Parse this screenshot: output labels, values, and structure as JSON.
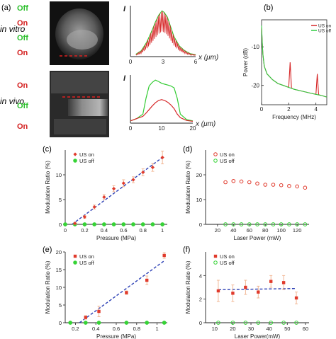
{
  "panel_labels": {
    "a": "(a)",
    "b": "(b)",
    "c": "(c)",
    "d": "(d)",
    "e": "(e)",
    "f": "(f)"
  },
  "panel_a": {
    "row_labels": {
      "in_vitro": "in vitro",
      "in_vivo": "in vivo"
    },
    "vitro_states": [
      "Off",
      "On",
      "Off",
      "On"
    ],
    "vivo_states": [
      "On",
      "Off",
      "On"
    ],
    "colors": {
      "off": "#2bbf2b",
      "on": "#d42020",
      "us_on_line": "#d62728",
      "us_off_line": "#33cc33"
    }
  },
  "chart_data": [
    {
      "id": "a-vitro-profile",
      "type": "line",
      "ylabel": "I",
      "xlabel": "x (μm)",
      "xlim": [
        0,
        6
      ],
      "xticks": [
        "0",
        "3",
        "6"
      ],
      "series": [
        {
          "values_note": "",
          "x": [
            0.5,
            1.0,
            1.5,
            2.0,
            2.3,
            2.6,
            2.9,
            3.1,
            3.4,
            3.7,
            4.0,
            4.5,
            5.0,
            5.5,
            6.0
          ],
          "y": [
            0.05,
            0.12,
            0.3,
            0.55,
            0.72,
            0.86,
            0.95,
            0.92,
            0.82,
            0.62,
            0.42,
            0.22,
            0.12,
            0.06,
            0.04
          ]
        }
      ]
    },
    {
      "id": "a-vivo-profile",
      "type": "line",
      "ylabel": "I",
      "xlabel": "x (μm)",
      "xlim": [
        0,
        20
      ],
      "xticks": [
        "0",
        "10",
        "20"
      ],
      "series": [
        {
          "x": [
            0,
            2,
            4,
            5,
            6,
            7,
            8,
            9,
            10,
            11,
            12,
            13,
            14,
            15,
            16,
            18,
            20
          ],
          "y": [
            0.05,
            0.1,
            0.2,
            0.55,
            0.82,
            0.9,
            0.95,
            0.92,
            0.88,
            0.86,
            0.84,
            0.82,
            0.78,
            0.55,
            0.2,
            0.08,
            0.05
          ]
        },
        {
          "x": [
            0,
            2,
            4,
            5,
            6,
            7,
            8,
            9,
            10,
            11,
            12,
            13,
            14,
            15,
            16,
            18,
            20
          ],
          "y": [
            0.05,
            0.1,
            0.15,
            0.22,
            0.3,
            0.38,
            0.45,
            0.5,
            0.52,
            0.5,
            0.46,
            0.4,
            0.32,
            0.2,
            0.12,
            0.06,
            0.04
          ]
        }
      ]
    },
    {
      "id": "b-spectrum",
      "type": "line",
      "title": "",
      "xlabel": "Frequency (MHz)",
      "ylabel": "Power (dB)",
      "xlim": [
        0,
        4.8
      ],
      "ylim": [
        -25,
        -3
      ],
      "xticks": [
        "0",
        "2",
        "4"
      ],
      "yticks": [
        "-10",
        "-20"
      ],
      "legend": {
        "placement": "top-right",
        "entries": [
          "US on",
          "US off"
        ]
      },
      "series": [
        {
          "name": "US on",
          "x": [
            0,
            0.05,
            0.1,
            0.2,
            0.4,
            0.8,
            1.2,
            1.6,
            2.0,
            2.1,
            2.2,
            2.4,
            3.0,
            3.6,
            4.0,
            4.1,
            4.2,
            4.4,
            4.8
          ],
          "y": [
            -5,
            -9,
            -12,
            -15,
            -17,
            -18.5,
            -19.5,
            -20,
            -20.5,
            -14,
            -20.7,
            -21,
            -21.5,
            -22,
            -22.3,
            -17,
            -22.4,
            -22.6,
            -23
          ]
        },
        {
          "name": "US off",
          "x": [
            0,
            0.05,
            0.1,
            0.2,
            0.4,
            0.8,
            1.2,
            1.6,
            2.0,
            2.4,
            3.0,
            3.6,
            4.0,
            4.4,
            4.8
          ],
          "y": [
            -4.5,
            -9,
            -12,
            -15,
            -17,
            -18.5,
            -19.5,
            -20,
            -20.5,
            -21,
            -21.5,
            -22,
            -22.3,
            -22.6,
            -23
          ]
        }
      ]
    },
    {
      "id": "c",
      "type": "scatter",
      "xlabel": "Pressure (MPa)",
      "ylabel": "Modulation Ratio (%)",
      "xlim": [
        0,
        1.05
      ],
      "ylim": [
        0,
        15
      ],
      "xticks": [
        0,
        0.2,
        0.4,
        0.6,
        0.8,
        1
      ],
      "xtick_labels": [
        "0",
        "0.2",
        "0.4",
        "0.6",
        "0.8",
        "1"
      ],
      "yticks": [
        0,
        5,
        10
      ],
      "ytick_labels": [
        "0",
        "5",
        "10"
      ],
      "legend": {
        "placement": "top-left",
        "entries": [
          "US on",
          "US off"
        ]
      },
      "series": [
        {
          "name": "US on",
          "x": [
            0.1,
            0.2,
            0.3,
            0.4,
            0.5,
            0.6,
            0.7,
            0.8,
            0.9,
            1.0
          ],
          "y": [
            0.2,
            1.5,
            3.5,
            5.5,
            7.2,
            8.3,
            9.0,
            10.5,
            11.5,
            13.5
          ],
          "err": [
            0.2,
            0.3,
            0.4,
            0.5,
            0.6,
            0.7,
            0.6,
            0.7,
            0.8,
            1.3
          ]
        },
        {
          "name": "US off",
          "x": [
            0.0,
            0.1,
            0.2,
            0.3,
            0.4,
            0.5,
            0.6,
            0.7,
            0.8,
            0.9,
            1.0
          ],
          "y": [
            0,
            0,
            0,
            0,
            0,
            0,
            0,
            0,
            0,
            0,
            0
          ]
        }
      ],
      "fit": {
        "x": [
          0.07,
          1.02
        ],
        "y": [
          0,
          13.8
        ]
      }
    },
    {
      "id": "d",
      "type": "scatter",
      "xlabel": "Laser Power (mW)",
      "ylabel": "Modulation Ratio (%)",
      "xlim": [
        5,
        135
      ],
      "ylim": [
        0,
        30
      ],
      "xticks": [
        20,
        40,
        60,
        80,
        100,
        120
      ],
      "xtick_labels": [
        "20",
        "40",
        "60",
        "80",
        "100",
        "120"
      ],
      "yticks": [
        0,
        10,
        20
      ],
      "ytick_labels": [
        "0",
        "10",
        "20"
      ],
      "legend": {
        "placement": "top-left",
        "entries": [
          "US on",
          "US off"
        ]
      },
      "series": [
        {
          "name": "US on",
          "x": [
            30,
            40,
            50,
            60,
            70,
            80,
            90,
            100,
            110,
            120,
            130
          ],
          "y": [
            17,
            17.5,
            17.3,
            17,
            16.5,
            16,
            16,
            15.8,
            15.5,
            15.3,
            14.8
          ]
        },
        {
          "name": "US off",
          "x": [
            30,
            40,
            50,
            60,
            70,
            80,
            90,
            100,
            110,
            120,
            130
          ],
          "y": [
            0,
            0,
            0,
            0,
            0,
            0,
            0,
            0,
            0,
            0,
            0
          ]
        }
      ]
    },
    {
      "id": "e",
      "type": "scatter",
      "xlabel": "Pressure (MPa)",
      "ylabel": "Modulation Ratio (%)",
      "xlim": [
        0.1,
        1.1
      ],
      "ylim": [
        0,
        20
      ],
      "xticks": [
        0.2,
        0.4,
        0.6,
        0.8,
        1
      ],
      "xtick_labels": [
        "0.2",
        "0.4",
        "0.6",
        "0.8",
        "1"
      ],
      "yticks": [
        0,
        5,
        10,
        15,
        20
      ],
      "ytick_labels": [
        "0",
        "5",
        "10",
        "15",
        "20"
      ],
      "legend": {
        "placement": "top-left",
        "entries": [
          "US on",
          "US off"
        ]
      },
      "series": [
        {
          "name": "US on",
          "x": [
            0.3,
            0.43,
            0.7,
            0.9,
            1.07
          ],
          "y": [
            1.5,
            3.2,
            8.5,
            12.0,
            19.0
          ],
          "err": [
            0.5,
            1.5,
            0.5,
            1.2,
            0.8
          ]
        },
        {
          "name": "US off",
          "x": [
            0.15,
            0.3,
            0.43,
            0.7,
            0.9,
            1.07
          ],
          "y": [
            0,
            0,
            0,
            0,
            0,
            0
          ]
        }
      ],
      "fit": {
        "x": [
          0.24,
          1.07
        ],
        "y": [
          0,
          17.5
        ]
      }
    },
    {
      "id": "f",
      "type": "scatter",
      "xlabel": "Laser Power(mW)",
      "ylabel": "Modulation Ratio (%)",
      "xlim": [
        5,
        62
      ],
      "ylim": [
        0,
        6
      ],
      "xticks": [
        10,
        20,
        30,
        40,
        50,
        60
      ],
      "xtick_labels": [
        "10",
        "20",
        "30",
        "40",
        "50",
        "60"
      ],
      "yticks": [
        0,
        2,
        4
      ],
      "ytick_labels": [
        "0",
        "2",
        "4"
      ],
      "legend": {
        "placement": "top-left",
        "entries": [
          "US on",
          "US off"
        ]
      },
      "series": [
        {
          "name": "US on",
          "x": [
            12,
            20,
            27,
            34,
            41,
            48,
            55
          ],
          "y": [
            2.7,
            2.5,
            3.0,
            2.6,
            3.5,
            3.4,
            2.1
          ],
          "err": [
            0.9,
            0.7,
            0.6,
            0.5,
            0.5,
            0.6,
            0.5
          ]
        },
        {
          "name": "US off",
          "x": [
            12,
            20,
            27,
            34,
            41,
            48,
            55
          ],
          "y": [
            0,
            0,
            0,
            0,
            0,
            0,
            0
          ]
        }
      ],
      "fit": {
        "x": [
          12,
          55
        ],
        "y": [
          2.8,
          2.9
        ]
      }
    }
  ],
  "styles": {
    "on_color": "#e03a2c",
    "off_color": "#36d336",
    "fit_color": "#2b3fb5",
    "error_color": "#f0b08a",
    "axis_color": "#222222",
    "spectrum_on": "#d62728",
    "spectrum_off": "#2ecc40"
  }
}
